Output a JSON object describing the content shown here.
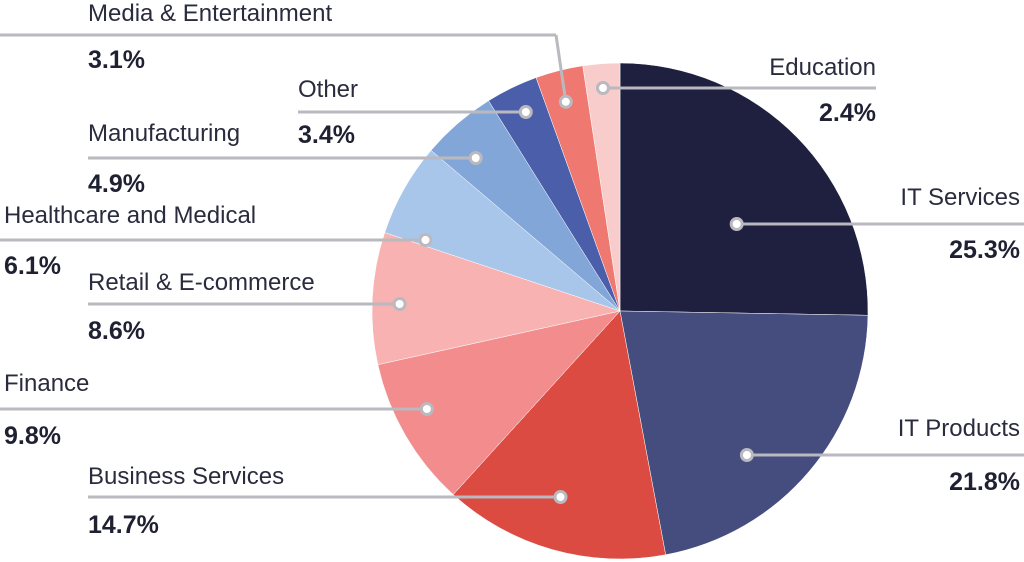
{
  "chart_data": {
    "type": "pie",
    "slices": [
      {
        "label": "IT Services",
        "value": 25.3,
        "value_label": "25.3%",
        "color": "#1f2040"
      },
      {
        "label": "IT Products",
        "value": 21.8,
        "value_label": "21.8%",
        "color": "#454c7e"
      },
      {
        "label": "Business Services",
        "value": 14.7,
        "value_label": "14.7%",
        "color": "#dc4b41"
      },
      {
        "label": "Finance",
        "value": 9.8,
        "value_label": "9.8%",
        "color": "#f28c8d"
      },
      {
        "label": "Retail & E-commerce",
        "value": 8.6,
        "value_label": "8.6%",
        "color": "#f7b2b1"
      },
      {
        "label": "Healthcare and Medical",
        "value": 6.1,
        "value_label": "6.1%",
        "color": "#a8c6ea"
      },
      {
        "label": "Manufacturing",
        "value": 4.9,
        "value_label": "4.9%",
        "color": "#83a6d8"
      },
      {
        "label": "Other",
        "value": 3.4,
        "value_label": "3.4%",
        "color": "#4a5eaa"
      },
      {
        "label": "Media & Entertainment",
        "value": 3.1,
        "value_label": "3.1%",
        "color": "#ef7870"
      },
      {
        "label": "Education",
        "value": 2.4,
        "value_label": "2.4%",
        "color": "#f9cccc"
      }
    ]
  }
}
